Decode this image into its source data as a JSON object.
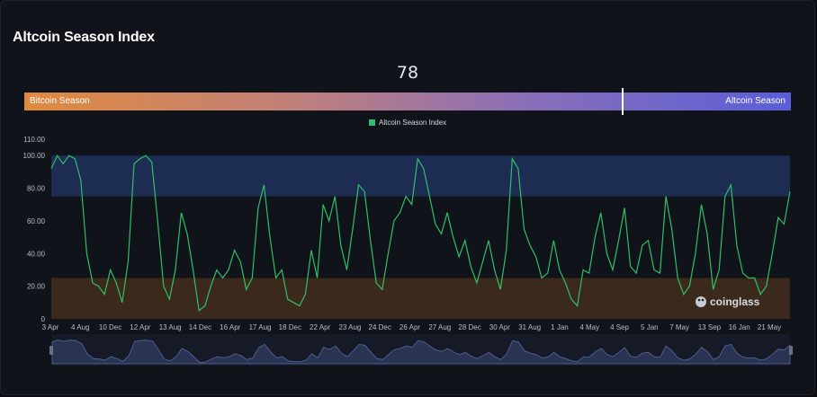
{
  "title": "Altcoin Season Index",
  "current_value": "78",
  "gauge": {
    "left_label": "Bitcoin Season",
    "right_label": "Altcoin Season",
    "value": 78,
    "min": 0,
    "max": 100
  },
  "watermark": "coinglass",
  "colors": {
    "line": "#2fbf6a",
    "altseason_band": "#1c2c52",
    "bitcoin_band": "#3b2a1c",
    "navigator_fill": "#2a3452"
  },
  "chart_data": {
    "type": "line",
    "title": "Altcoin Season Index",
    "series": [
      {
        "name": "Altcoin Season Index",
        "values": [
          92,
          100,
          95,
          100,
          98,
          85,
          40,
          22,
          20,
          15,
          30,
          22,
          10,
          35,
          95,
          98,
          100,
          96,
          60,
          20,
          12,
          30,
          65,
          52,
          30,
          5,
          8,
          20,
          30,
          25,
          30,
          42,
          35,
          18,
          25,
          68,
          82,
          50,
          25,
          30,
          12,
          10,
          8,
          15,
          42,
          25,
          70,
          60,
          75,
          45,
          30,
          55,
          82,
          78,
          48,
          22,
          18,
          40,
          60,
          65,
          75,
          70,
          98,
          92,
          75,
          58,
          52,
          65,
          50,
          38,
          48,
          32,
          22,
          35,
          48,
          30,
          18,
          42,
          98,
          92,
          55,
          45,
          38,
          25,
          28,
          48,
          30,
          22,
          12,
          8,
          30,
          28,
          50,
          65,
          40,
          30,
          48,
          68,
          32,
          28,
          45,
          48,
          30,
          28,
          75,
          55,
          25,
          15,
          20,
          40,
          70,
          52,
          18,
          30,
          75,
          82,
          45,
          28,
          25,
          25,
          15,
          20,
          40,
          62,
          58,
          78
        ]
      }
    ],
    "x_tick_labels": [
      "3 Apr",
      "4 Aug",
      "10 Dec",
      "12 Apr",
      "13 Aug",
      "14 Dec",
      "16 Apr",
      "17 Aug",
      "18 Dec",
      "22 Apr",
      "23 Aug",
      "24 Dec",
      "26 Apr",
      "27 Aug",
      "28 Dec",
      "30 Apr",
      "31 Aug",
      "1 Jan",
      "4 May",
      "4 Sep",
      "5 Jan",
      "7 May",
      "13 Sep",
      "16 Jan",
      "21 May"
    ],
    "y_tick_labels": [
      "0",
      "20.00",
      "40.00",
      "60.00",
      "80.00",
      "100.00",
      "110.00"
    ],
    "ylim": [
      0,
      110
    ],
    "bands": [
      {
        "name": "Altcoin Season",
        "from": 75,
        "to": 100
      },
      {
        "name": "Bitcoin Season",
        "from": 0,
        "to": 25
      }
    ],
    "legend_position": "top-center",
    "grid": false
  }
}
